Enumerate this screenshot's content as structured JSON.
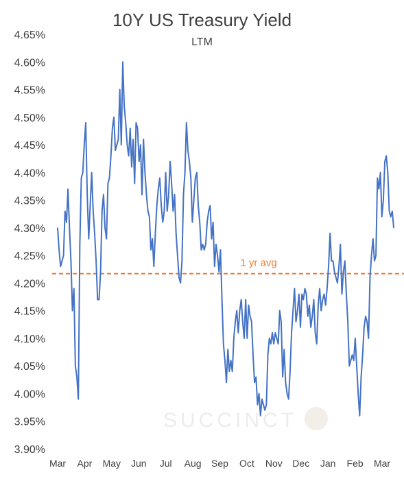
{
  "chart_data": {
    "type": "line",
    "title": "10Y US Treasury Yield",
    "subtitle": "LTM",
    "xlabel": "",
    "ylabel": "",
    "ylim": [
      3.9,
      4.65
    ],
    "y_ticks": [
      "4.65%",
      "4.60%",
      "4.55%",
      "4.50%",
      "4.45%",
      "4.40%",
      "4.35%",
      "4.30%",
      "4.25%",
      "4.20%",
      "4.15%",
      "4.10%",
      "4.05%",
      "4.00%",
      "3.95%",
      "3.90%"
    ],
    "x_ticks": [
      "Mar",
      "Apr",
      "May",
      "Jun",
      "Jul",
      "Aug",
      "Sep",
      "Oct",
      "Nov",
      "Dec",
      "Jan",
      "Feb",
      "Mar"
    ],
    "grid": false,
    "series": [
      {
        "color": "#4472C4",
        "values": [
          4.3,
          4.26,
          4.23,
          4.24,
          4.25,
          4.33,
          4.31,
          4.37,
          4.3,
          4.24,
          4.15,
          4.19,
          4.05,
          4.03,
          3.99,
          4.27,
          4.39,
          4.4,
          4.45,
          4.49,
          4.36,
          4.28,
          4.34,
          4.4,
          4.33,
          4.29,
          4.24,
          4.17,
          4.17,
          4.22,
          4.33,
          4.36,
          4.3,
          4.28,
          4.38,
          4.39,
          4.43,
          4.48,
          4.5,
          4.44,
          4.45,
          4.46,
          4.55,
          4.45,
          4.6,
          4.52,
          4.49,
          4.45,
          4.43,
          4.48,
          4.41,
          4.46,
          4.38,
          4.49,
          4.48,
          4.42,
          4.45,
          4.36,
          4.46,
          4.4,
          4.36,
          4.33,
          4.32,
          4.26,
          4.28,
          4.23,
          4.29,
          4.34,
          4.37,
          4.39,
          4.34,
          4.31,
          4.33,
          4.4,
          4.33,
          4.36,
          4.42,
          4.38,
          4.33,
          4.36,
          4.29,
          4.25,
          4.21,
          4.2,
          4.24,
          4.36,
          4.4,
          4.49,
          4.44,
          4.42,
          4.39,
          4.31,
          4.35,
          4.39,
          4.4,
          4.34,
          4.31,
          4.26,
          4.27,
          4.26,
          4.27,
          4.31,
          4.33,
          4.34,
          4.28,
          4.31,
          4.23,
          4.27,
          4.25,
          4.22,
          4.26,
          4.17,
          4.09,
          4.06,
          4.02,
          4.08,
          4.04,
          4.06,
          4.04,
          4.1,
          4.13,
          4.15,
          4.11,
          4.15,
          4.17,
          4.13,
          4.1,
          4.17,
          4.1,
          4.16,
          4.14,
          4.13,
          4.07,
          4.02,
          4.03,
          3.98,
          4.0,
          3.96,
          3.99,
          3.98,
          3.97,
          3.98,
          4.07,
          4.1,
          4.09,
          4.11,
          4.09,
          4.11,
          4.1,
          4.09,
          4.15,
          4.13,
          4.03,
          4.08,
          4.02,
          4.0,
          3.99,
          4.04,
          4.11,
          4.15,
          4.19,
          4.13,
          4.15,
          4.18,
          4.12,
          4.18,
          4.17,
          4.19,
          4.18,
          4.14,
          4.16,
          4.12,
          4.14,
          4.17,
          4.11,
          4.09,
          4.16,
          4.19,
          4.15,
          4.17,
          4.18,
          4.16,
          4.19,
          4.23,
          4.29,
          4.24,
          4.24,
          4.22,
          4.21,
          4.2,
          4.23,
          4.27,
          4.18,
          4.22,
          4.24,
          4.18,
          4.13,
          4.05,
          4.06,
          4.07,
          4.06,
          4.1,
          4.05,
          4.0,
          3.96,
          4.03,
          4.07,
          4.12,
          4.14,
          4.13,
          4.1,
          4.21,
          4.25,
          4.28,
          4.24,
          4.25,
          4.39,
          4.37,
          4.4,
          4.32,
          4.35,
          4.42,
          4.43,
          4.4,
          4.33,
          4.32,
          4.33,
          4.3
        ]
      }
    ],
    "average": {
      "label": "1 yr avg",
      "value": 4.217,
      "color": "#ED7D31"
    }
  },
  "watermark": "SUCCINCT"
}
